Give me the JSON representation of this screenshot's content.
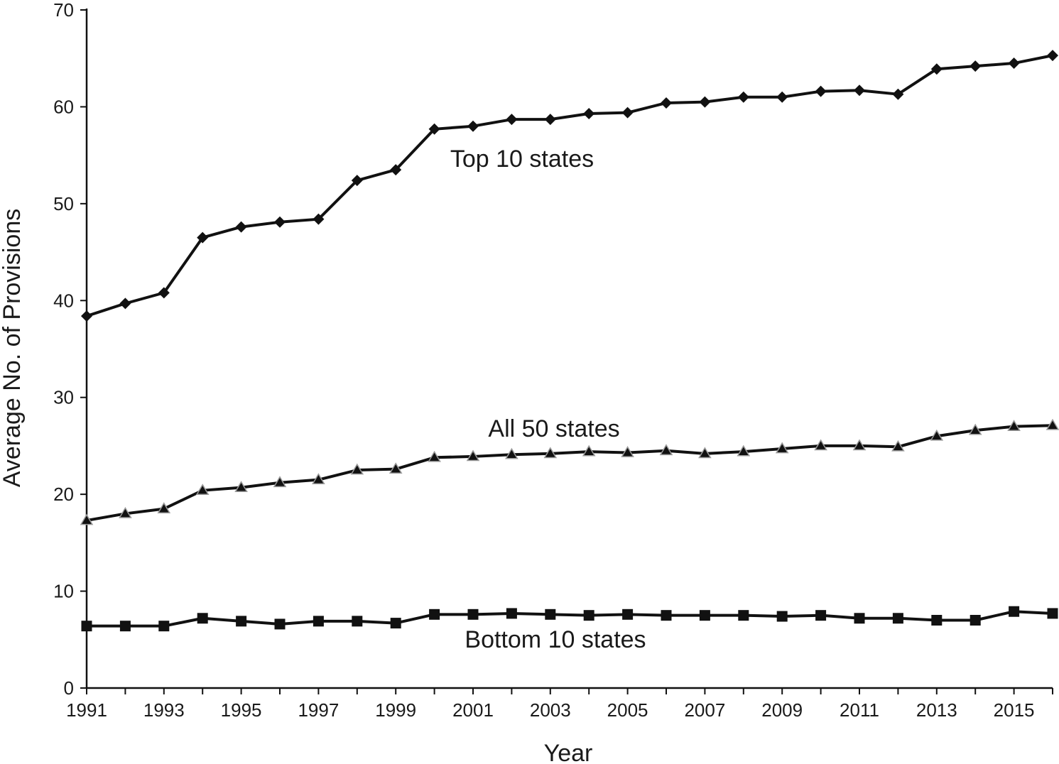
{
  "chart_data": {
    "type": "line",
    "xlabel": "Year",
    "ylabel": "Average No. of Provisions",
    "ylim": [
      0,
      70
    ],
    "xlim": [
      1991,
      2016
    ],
    "yticks": [
      "0",
      "10",
      "20",
      "30",
      "40",
      "50",
      "60",
      "70"
    ],
    "xticks": [
      "1991",
      "1993",
      "1995",
      "1997",
      "1999",
      "2001",
      "2003",
      "2005",
      "2007",
      "2009",
      "2011",
      "2013",
      "2015"
    ],
    "x": [
      1991,
      1992,
      1993,
      1994,
      1995,
      1996,
      1997,
      1998,
      1999,
      2000,
      2001,
      2002,
      2003,
      2004,
      2005,
      2006,
      2007,
      2008,
      2009,
      2010,
      2011,
      2012,
      2013,
      2014,
      2015,
      2016
    ],
    "grid": false,
    "series": [
      {
        "name": "Top 10 states",
        "marker": "diamond",
        "values": [
          38.4,
          39.7,
          40.8,
          46.5,
          47.6,
          48.1,
          48.4,
          52.4,
          53.5,
          57.7,
          58.0,
          58.7,
          58.7,
          59.3,
          59.4,
          60.4,
          60.5,
          61.0,
          61.0,
          61.6,
          61.7,
          61.3,
          63.9,
          64.2,
          64.5,
          65.3
        ]
      },
      {
        "name": "All 50 states",
        "marker": "triangle",
        "values": [
          17.3,
          18.0,
          18.5,
          20.4,
          20.7,
          21.2,
          21.5,
          22.5,
          22.6,
          23.8,
          23.9,
          24.1,
          24.2,
          24.4,
          24.3,
          24.5,
          24.2,
          24.4,
          24.7,
          25.0,
          25.0,
          24.9,
          26.0,
          26.6,
          27.0,
          27.1
        ]
      },
      {
        "name": "Bottom 10 states",
        "marker": "square",
        "values": [
          6.4,
          6.4,
          6.4,
          7.2,
          6.9,
          6.6,
          6.9,
          6.9,
          6.7,
          7.6,
          7.6,
          7.7,
          7.6,
          7.5,
          7.6,
          7.5,
          7.5,
          7.5,
          7.4,
          7.5,
          7.2,
          7.2,
          7.0,
          7.0,
          7.9,
          7.7
        ]
      }
    ]
  },
  "labels": {
    "top": "Top 10 states",
    "all": "All 50 states",
    "bottom": "Bottom 10 states"
  }
}
